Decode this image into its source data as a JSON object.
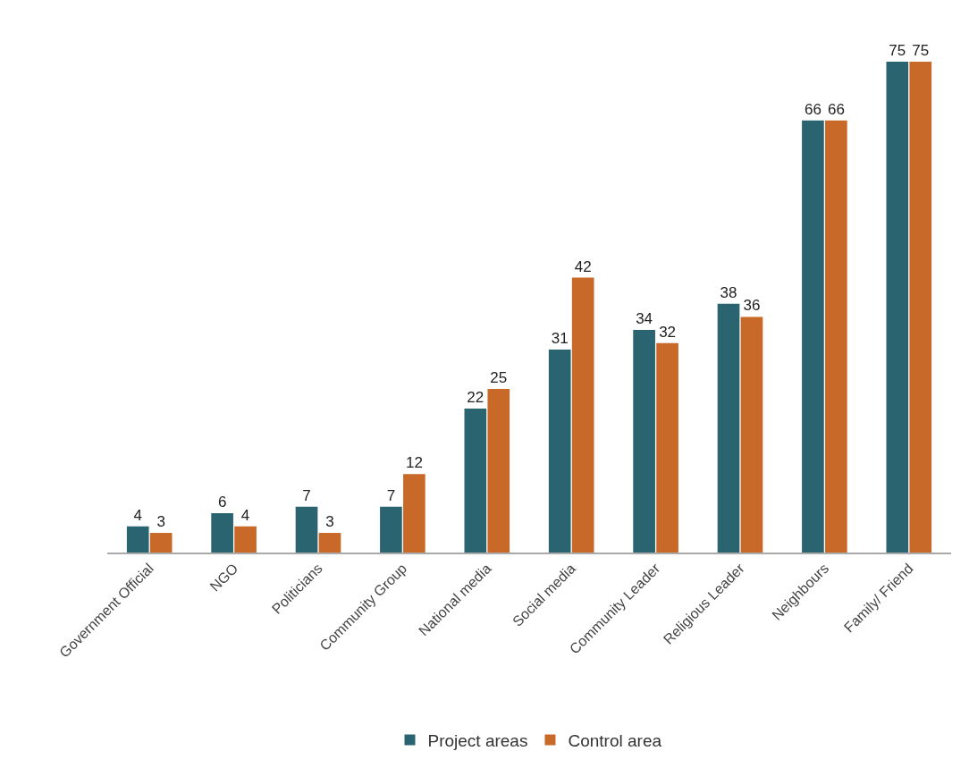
{
  "chart_data": {
    "type": "bar",
    "categories": [
      "Government Official",
      "NGO",
      "Politicians",
      "Community Group",
      "National media",
      "Social media",
      "Community Leader",
      "Religious Leader",
      "Neighbours",
      "Family/ Friend"
    ],
    "series": [
      {
        "name": "Project areas",
        "color": "#2a6470",
        "values": [
          4,
          6,
          7,
          7,
          22,
          31,
          34,
          38,
          66,
          75
        ]
      },
      {
        "name": "Control area",
        "color": "#c8692a",
        "values": [
          3,
          4,
          3,
          12,
          25,
          42,
          32,
          36,
          66,
          75
        ]
      }
    ],
    "data_labels": true,
    "legend": "bottom"
  }
}
